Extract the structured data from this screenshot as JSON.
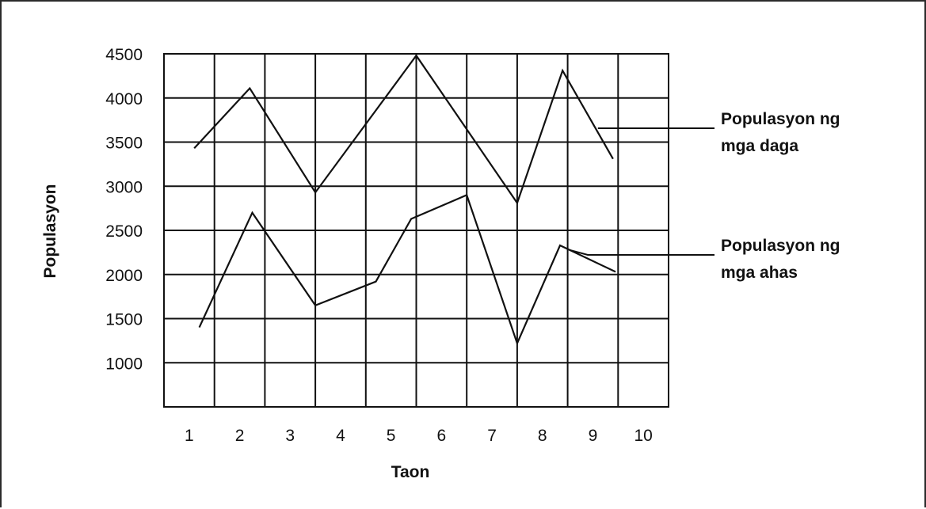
{
  "chart_data": {
    "type": "line",
    "title": "",
    "xlabel": "Taon",
    "ylabel": "Populasyon",
    "x_ticks": [
      "1",
      "2",
      "3",
      "4",
      "5",
      "6",
      "7",
      "8",
      "9",
      "10"
    ],
    "y_ticks": [
      "1000",
      "1500",
      "2000",
      "2500",
      "3000",
      "3500",
      "4000",
      "4500"
    ],
    "ylim": [
      500,
      4500
    ],
    "grid": true,
    "legend_placement": "right, labels connected to lines by leader lines",
    "series": [
      {
        "name": "Populasyon ng mga daga",
        "label_lines": [
          "Populasyon ng",
          "mga  daga"
        ],
        "x": [
          0.6,
          1.7,
          3.0,
          5.0,
          7.0,
          7.9,
          8.9
        ],
        "values": [
          3430,
          4110,
          2930,
          4480,
          2810,
          4310,
          3310
        ]
      },
      {
        "name": "Populasyon ng mga ahas",
        "label_lines": [
          "Populasyon ng",
          "mga ahas"
        ],
        "x": [
          0.7,
          1.75,
          3.0,
          4.2,
          4.9,
          6.0,
          7.0,
          7.85,
          8.95
        ],
        "values": [
          1400,
          2700,
          1650,
          1920,
          2630,
          2900,
          1220,
          2330,
          2030
        ]
      }
    ]
  }
}
